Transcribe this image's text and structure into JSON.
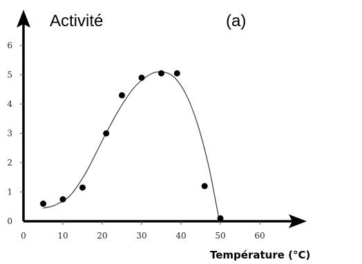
{
  "chart_data": {
    "type": "scatter",
    "title": "",
    "panel_label": "(a)",
    "ylabel": "Activité",
    "xlabel": "Température (°C)",
    "xlim": [
      0,
      70
    ],
    "ylim": [
      0,
      6
    ],
    "x_ticks": [
      "0",
      "10",
      "20",
      "30",
      "40",
      "50",
      "60"
    ],
    "y_ticks": [
      "0",
      "1",
      "2",
      "3",
      "4",
      "5",
      "6"
    ],
    "grid": false,
    "series": [
      {
        "points": [
          {
            "x": 5,
            "y": 0.6
          },
          {
            "x": 10,
            "y": 0.75
          },
          {
            "x": 15,
            "y": 1.15
          },
          {
            "x": 21,
            "y": 3.0
          },
          {
            "x": 25,
            "y": 4.3
          },
          {
            "x": 30,
            "y": 4.9
          },
          {
            "x": 35,
            "y": 5.05
          },
          {
            "x": 39,
            "y": 5.05
          },
          {
            "x": 46,
            "y": 1.2
          },
          {
            "x": 50,
            "y": 0.1
          }
        ]
      }
    ],
    "fit_curve": [
      {
        "x": 5,
        "y": 0.45
      },
      {
        "x": 8,
        "y": 0.55
      },
      {
        "x": 12,
        "y": 0.9
      },
      {
        "x": 16,
        "y": 1.7
      },
      {
        "x": 20,
        "y": 2.75
      },
      {
        "x": 24,
        "y": 3.75
      },
      {
        "x": 28,
        "y": 4.55
      },
      {
        "x": 32,
        "y": 5.0
      },
      {
        "x": 35,
        "y": 5.1
      },
      {
        "x": 38,
        "y": 4.95
      },
      {
        "x": 41,
        "y": 4.4
      },
      {
        "x": 44,
        "y": 3.4
      },
      {
        "x": 47,
        "y": 1.9
      },
      {
        "x": 49.5,
        "y": 0.2
      },
      {
        "x": 50,
        "y": 0
      }
    ]
  }
}
